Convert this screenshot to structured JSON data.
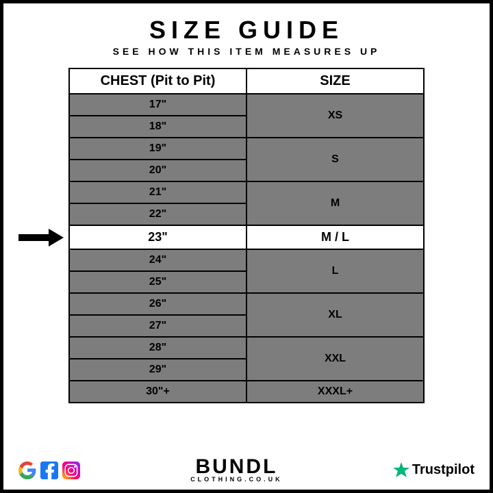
{
  "header": {
    "title": "SIZE GUIDE",
    "subtitle": "SEE HOW THIS ITEM MEASURES UP"
  },
  "table": {
    "columns": [
      "CHEST (Pit to Pit)",
      "SIZE"
    ],
    "column_widths": [
      0.5,
      0.5
    ],
    "header_bg": "#ffffff",
    "cell_bg": "#7d7d7d",
    "highlight_bg": "#ffffff",
    "border_color": "#000000",
    "header_fontsize": 20,
    "cell_fontsize": 16,
    "rows": [
      {
        "chest": [
          "17\"",
          "18\""
        ],
        "size": "XS",
        "highlight": false
      },
      {
        "chest": [
          "19\"",
          "20\""
        ],
        "size": "S",
        "highlight": false
      },
      {
        "chest": [
          "21\"",
          "22\""
        ],
        "size": "M",
        "highlight": false
      },
      {
        "chest": [
          "23\""
        ],
        "size": "M / L",
        "highlight": true
      },
      {
        "chest": [
          "24\"",
          "25\""
        ],
        "size": "L",
        "highlight": false
      },
      {
        "chest": [
          "26\"",
          "27\""
        ],
        "size": "XL",
        "highlight": false
      },
      {
        "chest": [
          "28\"",
          "29\""
        ],
        "size": "XXL",
        "highlight": false
      },
      {
        "chest": [
          "30\"+"
        ],
        "size": "XXXL+",
        "highlight": false
      }
    ],
    "arrow_color": "#000000"
  },
  "footer": {
    "socials": [
      "google-icon",
      "facebook-icon",
      "instagram-icon"
    ],
    "brand_name": "BUNDL",
    "brand_sub": "CLOTHING.CO.UK",
    "trustpilot_label": "Trustpilot",
    "trust_star_color": "#00b67a"
  },
  "colors": {
    "page_bg": "#ffffff",
    "page_border": "#000000",
    "text": "#000000"
  }
}
